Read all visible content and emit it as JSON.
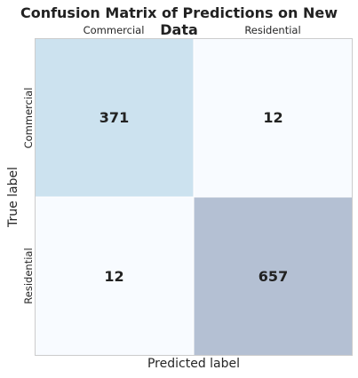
{
  "chart_data": {
    "type": "heatmap",
    "title": "Confusion Matrix of Predictions on New Data",
    "xlabel": "Predicted label",
    "ylabel": "True label",
    "x_categories": [
      "Commercial",
      "Residential"
    ],
    "y_categories": [
      "Commercial",
      "Residential"
    ],
    "values": [
      [
        371,
        12
      ],
      [
        12,
        657
      ]
    ],
    "x_ticks_position": "top",
    "colormap": "Blues",
    "cell_colors": [
      [
        "#cce2ef",
        "#f8fbff"
      ],
      [
        "#f8fbff",
        "#b4c0d3"
      ]
    ],
    "value_label_color": "#222222",
    "grid": false,
    "colorbar": false
  }
}
